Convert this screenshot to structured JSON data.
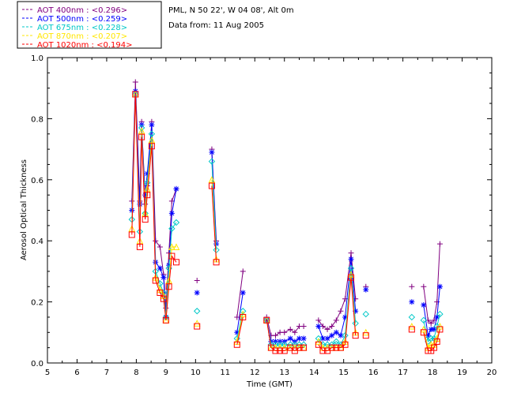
{
  "info": {
    "site": "PML, N 50 22', W 04 08', Alt 0m",
    "date": "Data from: 11 Aug 2005"
  },
  "chart_data": {
    "type": "scatter",
    "xlabel": "Time (GMT)",
    "ylabel": "Aerosol Optical Thickness",
    "xlim": [
      5,
      20
    ],
    "ylim": [
      0,
      1
    ],
    "xticks": [
      5,
      6,
      7,
      8,
      9,
      10,
      11,
      12,
      13,
      14,
      15,
      16,
      17,
      18,
      19,
      20
    ],
    "yticks": [
      "0.0",
      "0.2",
      "0.4",
      "0.6",
      "0.8",
      "1.0"
    ],
    "legend_position": "top-left, outside plot",
    "series": [
      {
        "name": "AOT  400nm : <0.296>",
        "color": "#800080",
        "marker": "plus",
        "segments": [
          [
            [
              7.85,
              0.53
            ],
            [
              7.97,
              0.92
            ],
            [
              8.12,
              0.53
            ],
            [
              8.18,
              0.79
            ],
            [
              8.3,
              0.52
            ],
            [
              8.37,
              0.58
            ],
            [
              8.52,
              0.79
            ],
            [
              8.65,
              0.4
            ],
            [
              8.8,
              0.38
            ],
            [
              8.92,
              0.29
            ],
            [
              9.0,
              0.18
            ],
            [
              9.1,
              0.36
            ],
            [
              9.2,
              0.53
            ],
            [
              9.35,
              0.57
            ]
          ],
          [
            [
              10.05,
              0.27
            ]
          ],
          [
            [
              10.55,
              0.7
            ],
            [
              10.7,
              0.4
            ]
          ],
          [
            [
              11.4,
              0.15
            ],
            [
              11.6,
              0.3
            ]
          ],
          [
            [
              12.4,
              0.15
            ],
            [
              12.55,
              0.09
            ],
            [
              12.7,
              0.09
            ],
            [
              12.85,
              0.1
            ],
            [
              13.0,
              0.1
            ],
            [
              13.2,
              0.11
            ],
            [
              13.35,
              0.1
            ],
            [
              13.5,
              0.12
            ],
            [
              13.65,
              0.12
            ]
          ],
          [
            [
              14.15,
              0.14
            ],
            [
              14.3,
              0.12
            ],
            [
              14.45,
              0.11
            ],
            [
              14.6,
              0.12
            ],
            [
              14.75,
              0.14
            ],
            [
              14.9,
              0.17
            ],
            [
              15.05,
              0.21
            ],
            [
              15.25,
              0.36
            ],
            [
              15.4,
              0.21
            ]
          ],
          [
            [
              15.75,
              0.25
            ]
          ],
          [
            [
              17.3,
              0.25
            ]
          ],
          [
            [
              17.7,
              0.25
            ],
            [
              17.85,
              0.14
            ],
            [
              17.95,
              0.13
            ],
            [
              18.05,
              0.14
            ],
            [
              18.15,
              0.2
            ],
            [
              18.25,
              0.39
            ]
          ]
        ]
      },
      {
        "name": "AOT  500nm : <0.259>",
        "color": "#0000ff",
        "marker": "asterisk",
        "segments": [
          [
            [
              7.85,
              0.5
            ],
            [
              7.97,
              0.89
            ],
            [
              8.12,
              0.52
            ],
            [
              8.18,
              0.78
            ],
            [
              8.3,
              0.55
            ],
            [
              8.37,
              0.62
            ],
            [
              8.52,
              0.78
            ],
            [
              8.65,
              0.33
            ],
            [
              8.8,
              0.31
            ],
            [
              8.92,
              0.28
            ],
            [
              9.0,
              0.15
            ],
            [
              9.1,
              0.32
            ],
            [
              9.2,
              0.49
            ],
            [
              9.35,
              0.57
            ]
          ],
          [
            [
              10.05,
              0.23
            ]
          ],
          [
            [
              10.55,
              0.69
            ],
            [
              10.7,
              0.39
            ]
          ],
          [
            [
              11.4,
              0.1
            ],
            [
              11.6,
              0.23
            ]
          ],
          [
            [
              12.4,
              0.14
            ],
            [
              12.55,
              0.07
            ],
            [
              12.7,
              0.07
            ],
            [
              12.85,
              0.07
            ],
            [
              13.0,
              0.07
            ],
            [
              13.2,
              0.08
            ],
            [
              13.35,
              0.07
            ],
            [
              13.5,
              0.08
            ],
            [
              13.65,
              0.08
            ]
          ],
          [
            [
              14.15,
              0.12
            ],
            [
              14.3,
              0.08
            ],
            [
              14.45,
              0.08
            ],
            [
              14.6,
              0.09
            ],
            [
              14.75,
              0.1
            ],
            [
              14.9,
              0.09
            ],
            [
              15.05,
              0.15
            ],
            [
              15.25,
              0.34
            ],
            [
              15.4,
              0.17
            ]
          ],
          [
            [
              15.75,
              0.24
            ]
          ],
          [
            [
              17.3,
              0.2
            ]
          ],
          [
            [
              17.7,
              0.19
            ],
            [
              17.85,
              0.09
            ],
            [
              17.95,
              0.11
            ],
            [
              18.05,
              0.11
            ],
            [
              18.15,
              0.15
            ],
            [
              18.25,
              0.25
            ]
          ]
        ]
      },
      {
        "name": "AOT  675nm : <0.228>",
        "color": "#00c8c8",
        "marker": "diamond",
        "segments": [
          [
            [
              7.85,
              0.47
            ],
            [
              7.97,
              0.88
            ],
            [
              8.12,
              0.43
            ],
            [
              8.18,
              0.77
            ],
            [
              8.3,
              0.49
            ],
            [
              8.37,
              0.59
            ],
            [
              8.52,
              0.75
            ],
            [
              8.65,
              0.3
            ],
            [
              8.8,
              0.26
            ],
            [
              8.92,
              0.23
            ],
            [
              9.0,
              0.15
            ],
            [
              9.1,
              0.31
            ],
            [
              9.2,
              0.44
            ],
            [
              9.35,
              0.46
            ]
          ],
          [
            [
              10.05,
              0.17
            ]
          ],
          [
            [
              10.55,
              0.66
            ],
            [
              10.7,
              0.37
            ]
          ],
          [
            [
              11.4,
              0.08
            ],
            [
              11.6,
              0.17
            ]
          ],
          [
            [
              12.4,
              0.14
            ],
            [
              12.55,
              0.06
            ],
            [
              12.7,
              0.06
            ],
            [
              12.85,
              0.06
            ],
            [
              13.0,
              0.06
            ],
            [
              13.2,
              0.06
            ],
            [
              13.35,
              0.06
            ],
            [
              13.5,
              0.06
            ],
            [
              13.65,
              0.06
            ]
          ],
          [
            [
              14.15,
              0.08
            ],
            [
              14.3,
              0.06
            ],
            [
              14.45,
              0.06
            ],
            [
              14.6,
              0.06
            ],
            [
              14.75,
              0.07
            ],
            [
              14.9,
              0.06
            ],
            [
              15.05,
              0.09
            ],
            [
              15.25,
              0.31
            ],
            [
              15.4,
              0.13
            ]
          ],
          [
            [
              15.75,
              0.16
            ]
          ],
          [
            [
              17.3,
              0.15
            ]
          ],
          [
            [
              17.7,
              0.14
            ],
            [
              17.85,
              0.07
            ],
            [
              17.95,
              0.08
            ],
            [
              18.05,
              0.08
            ],
            [
              18.15,
              0.12
            ],
            [
              18.25,
              0.16
            ]
          ]
        ]
      },
      {
        "name": "AOT  870nm : <0.207>",
        "color": "#ffe600",
        "marker": "triangle",
        "segments": [
          [
            [
              7.85,
              0.44
            ],
            [
              7.97,
              0.88
            ],
            [
              8.12,
              0.4
            ],
            [
              8.18,
              0.76
            ],
            [
              8.3,
              0.49
            ],
            [
              8.37,
              0.57
            ],
            [
              8.52,
              0.73
            ],
            [
              8.65,
              0.28
            ],
            [
              8.8,
              0.24
            ],
            [
              8.92,
              0.22
            ],
            [
              9.0,
              0.14
            ],
            [
              9.1,
              0.27
            ],
            [
              9.2,
              0.38
            ],
            [
              9.35,
              0.38
            ]
          ],
          [
            [
              10.05,
              0.13
            ]
          ],
          [
            [
              10.55,
              0.6
            ],
            [
              10.7,
              0.34
            ]
          ],
          [
            [
              11.4,
              0.07
            ],
            [
              11.6,
              0.16
            ]
          ],
          [
            [
              12.4,
              0.14
            ],
            [
              12.55,
              0.05
            ],
            [
              12.7,
              0.05
            ],
            [
              12.85,
              0.05
            ],
            [
              13.0,
              0.05
            ],
            [
              13.2,
              0.05
            ],
            [
              13.35,
              0.05
            ],
            [
              13.5,
              0.05
            ],
            [
              13.65,
              0.05
            ]
          ],
          [
            [
              14.15,
              0.07
            ],
            [
              14.3,
              0.05
            ],
            [
              14.45,
              0.05
            ],
            [
              14.6,
              0.05
            ],
            [
              14.75,
              0.05
            ],
            [
              14.9,
              0.05
            ],
            [
              15.05,
              0.07
            ],
            [
              15.25,
              0.29
            ],
            [
              15.4,
              0.1
            ]
          ],
          [
            [
              15.75,
              0.1
            ]
          ],
          [
            [
              17.3,
              0.12
            ]
          ],
          [
            [
              17.7,
              0.11
            ],
            [
              17.85,
              0.05
            ],
            [
              17.95,
              0.06
            ],
            [
              18.05,
              0.06
            ],
            [
              18.15,
              0.08
            ],
            [
              18.25,
              0.12
            ]
          ]
        ]
      },
      {
        "name": "AOT 1020nm : <0.194>",
        "color": "#ff0000",
        "marker": "square",
        "segments": [
          [
            [
              7.85,
              0.42
            ],
            [
              7.97,
              0.88
            ],
            [
              8.12,
              0.38
            ],
            [
              8.18,
              0.74
            ],
            [
              8.3,
              0.47
            ],
            [
              8.37,
              0.55
            ],
            [
              8.52,
              0.71
            ],
            [
              8.65,
              0.27
            ],
            [
              8.8,
              0.23
            ],
            [
              8.92,
              0.21
            ],
            [
              9.0,
              0.14
            ],
            [
              9.1,
              0.25
            ],
            [
              9.2,
              0.35
            ],
            [
              9.35,
              0.33
            ]
          ],
          [
            [
              10.05,
              0.12
            ]
          ],
          [
            [
              10.55,
              0.58
            ],
            [
              10.7,
              0.33
            ]
          ],
          [
            [
              11.4,
              0.06
            ],
            [
              11.6,
              0.15
            ]
          ],
          [
            [
              12.4,
              0.14
            ],
            [
              12.55,
              0.05
            ],
            [
              12.7,
              0.04
            ],
            [
              12.85,
              0.04
            ],
            [
              13.0,
              0.04
            ],
            [
              13.2,
              0.05
            ],
            [
              13.35,
              0.04
            ],
            [
              13.5,
              0.05
            ],
            [
              13.65,
              0.05
            ]
          ],
          [
            [
              14.15,
              0.06
            ],
            [
              14.3,
              0.04
            ],
            [
              14.45,
              0.04
            ],
            [
              14.6,
              0.05
            ],
            [
              14.75,
              0.05
            ],
            [
              14.9,
              0.05
            ],
            [
              15.05,
              0.06
            ],
            [
              15.25,
              0.28
            ],
            [
              15.4,
              0.09
            ]
          ],
          [
            [
              15.75,
              0.09
            ]
          ],
          [
            [
              17.3,
              0.11
            ]
          ],
          [
            [
              17.7,
              0.1
            ],
            [
              17.85,
              0.04
            ],
            [
              17.95,
              0.04
            ],
            [
              18.05,
              0.05
            ],
            [
              18.15,
              0.07
            ],
            [
              18.25,
              0.11
            ]
          ]
        ]
      }
    ]
  }
}
